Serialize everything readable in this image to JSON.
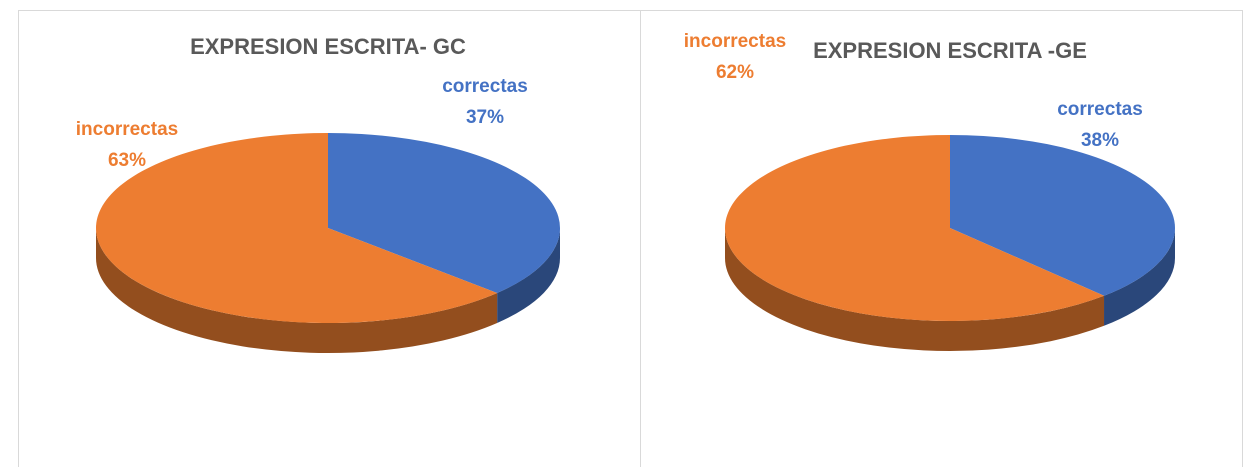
{
  "chart_data": [
    {
      "type": "pie",
      "title": "EXPRESION ESCRITA- GC",
      "categories": [
        "correctas",
        "incorrectas"
      ],
      "values": [
        37,
        63
      ],
      "value_labels": [
        "37%",
        "63%"
      ],
      "colors": [
        "#4472c4",
        "#ed7d31"
      ]
    },
    {
      "type": "pie",
      "title": "EXPRESION ESCRITA -GE",
      "categories": [
        "correctas",
        "incorrectas"
      ],
      "values": [
        38,
        62
      ],
      "value_labels": [
        "38%",
        "62%"
      ],
      "colors": [
        "#4472c4",
        "#ed7d31"
      ]
    }
  ]
}
